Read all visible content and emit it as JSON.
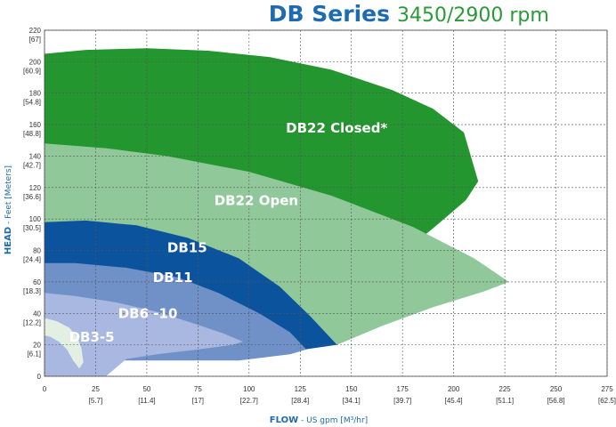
{
  "chart_data": {
    "type": "area",
    "title_brand": "DB Series",
    "title_rpm": "3450/2900 rpm",
    "xlabel_bold": "FLOW",
    "xlabel_rest": " - US gpm [M³/hr]",
    "ylabel_bold": "HEAD",
    "ylabel_rest": " - Feet [Meters]",
    "xlim": [
      0,
      275
    ],
    "ylim": [
      0,
      220
    ],
    "grid": true,
    "x_ticks": [
      {
        "v": 0,
        "label": "0",
        "sub": ""
      },
      {
        "v": 25,
        "label": "25",
        "sub": "[5.7]"
      },
      {
        "v": 50,
        "label": "50",
        "sub": "[11.4]"
      },
      {
        "v": 75,
        "label": "75",
        "sub": "[17]"
      },
      {
        "v": 100,
        "label": "100",
        "sub": "[22.7]"
      },
      {
        "v": 125,
        "label": "125",
        "sub": "[28.4]"
      },
      {
        "v": 150,
        "label": "150",
        "sub": "[34.1]"
      },
      {
        "v": 175,
        "label": "175",
        "sub": "[39.7]"
      },
      {
        "v": 200,
        "label": "200",
        "sub": "[45.4]"
      },
      {
        "v": 225,
        "label": "225",
        "sub": "[51.1]"
      },
      {
        "v": 250,
        "label": "250",
        "sub": "[56.8]"
      },
      {
        "v": 275,
        "label": "275",
        "sub": "[62.5]"
      }
    ],
    "y_ticks": [
      {
        "v": 0,
        "label": "0",
        "sub": ""
      },
      {
        "v": 20,
        "label": "20",
        "sub": "[6.1]"
      },
      {
        "v": 40,
        "label": "40",
        "sub": "[12.2]"
      },
      {
        "v": 60,
        "label": "60",
        "sub": "[18.3]"
      },
      {
        "v": 80,
        "label": "80",
        "sub": "[24.4]"
      },
      {
        "v": 100,
        "label": "100",
        "sub": "[30.5]"
      },
      {
        "v": 120,
        "label": "120",
        "sub": "[36.6]"
      },
      {
        "v": 140,
        "label": "140",
        "sub": "[42.7]"
      },
      {
        "v": 160,
        "label": "160",
        "sub": "[48.8]"
      },
      {
        "v": 180,
        "label": "180",
        "sub": "[54.8]"
      },
      {
        "v": 200,
        "label": "200",
        "sub": "[60.9]"
      },
      {
        "v": 220,
        "label": "220",
        "sub": "[67]"
      }
    ],
    "series": [
      {
        "name": "DB22 Closed*",
        "color": "#23962f",
        "label_at": [
          118,
          155
        ],
        "polygon": [
          [
            0,
            205
          ],
          [
            20,
            207.5
          ],
          [
            50,
            208.5
          ],
          [
            80,
            207
          ],
          [
            110,
            203
          ],
          [
            140,
            195
          ],
          [
            170,
            182
          ],
          [
            190,
            170
          ],
          [
            205,
            155
          ],
          [
            212,
            124
          ],
          [
            206,
            112
          ],
          [
            198,
            103
          ],
          [
            188,
            92
          ],
          [
            180,
            84
          ],
          [
            0,
            84
          ]
        ]
      },
      {
        "name": "DB22 Open",
        "color": "#90c89a",
        "label_at": [
          83,
          109
        ],
        "polygon": [
          [
            0,
            148
          ],
          [
            30,
            145
          ],
          [
            60,
            140
          ],
          [
            100,
            130
          ],
          [
            140,
            115
          ],
          [
            180,
            95
          ],
          [
            210,
            75
          ],
          [
            227,
            60
          ],
          [
            215,
            54
          ],
          [
            190,
            44
          ],
          [
            165,
            32
          ],
          [
            143,
            20
          ],
          [
            0,
            20
          ]
        ]
      },
      {
        "name": "DB15",
        "color": "#0c539e",
        "label_at": [
          60,
          79
        ],
        "polygon": [
          [
            0,
            98
          ],
          [
            20,
            99
          ],
          [
            45,
            96
          ],
          [
            70,
            88
          ],
          [
            95,
            75
          ],
          [
            115,
            57
          ],
          [
            130,
            38
          ],
          [
            143,
            20
          ],
          [
            127,
            17
          ],
          [
            0,
            17
          ]
        ]
      },
      {
        "name": "DB11",
        "color": "#7090c8",
        "label_at": [
          53,
          60
        ],
        "polygon": [
          [
            0,
            72
          ],
          [
            15,
            72
          ],
          [
            40,
            69
          ],
          [
            65,
            63
          ],
          [
            85,
            53
          ],
          [
            105,
            40
          ],
          [
            120,
            28
          ],
          [
            128,
            17
          ],
          [
            120,
            14
          ],
          [
            95,
            10
          ],
          [
            0,
            10
          ]
        ]
      },
      {
        "name": "DB6 -10",
        "color": "#a8b8e0",
        "label_at": [
          36,
          37
        ],
        "polygon": [
          [
            0,
            53
          ],
          [
            15,
            51
          ],
          [
            35,
            47
          ],
          [
            55,
            41
          ],
          [
            72,
            34
          ],
          [
            88,
            27
          ],
          [
            97,
            22
          ],
          [
            92,
            20
          ],
          [
            75,
            17
          ],
          [
            55,
            14
          ],
          [
            40,
            11
          ],
          [
            30,
            0
          ],
          [
            0,
            0
          ]
        ]
      },
      {
        "name": "DB3-5",
        "color": "#e4efe4",
        "label_at": [
          12,
          22
        ],
        "polygon": [
          [
            0,
            37
          ],
          [
            6,
            35
          ],
          [
            12,
            31
          ],
          [
            16,
            25
          ],
          [
            18,
            18
          ],
          [
            19,
            9
          ],
          [
            17,
            5
          ],
          [
            14,
            10
          ],
          [
            11,
            17
          ],
          [
            7,
            22
          ],
          [
            3,
            25
          ],
          [
            0,
            26
          ]
        ]
      }
    ],
    "colors": {
      "brand_blue": "#1e6bb0",
      "rpm_green": "#2a9a39",
      "grid": "#555555"
    }
  }
}
